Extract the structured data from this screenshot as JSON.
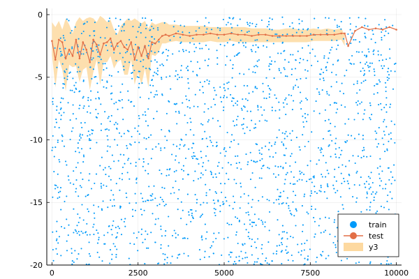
{
  "chart_data": {
    "type": "scatter",
    "title": "",
    "xlabel": "",
    "ylabel": "",
    "xlim": [
      -150,
      10150
    ],
    "ylim": [
      -20,
      0.5
    ],
    "xticks": [
      0,
      2500,
      5000,
      7500,
      10000
    ],
    "xtick_labels": [
      "0",
      "2500",
      "5000",
      "7500",
      "10000"
    ],
    "yticks": [
      0,
      -5,
      -10,
      -15,
      -20
    ],
    "ytick_labels": [
      "0",
      "-5",
      "-10",
      "-15",
      "-20"
    ],
    "grid": true,
    "legend_position": "bottom-right",
    "colors": {
      "train": "#009AFA",
      "test": "#E26F46",
      "band": "#FDD9A0"
    },
    "series": [
      {
        "name": "train",
        "kind": "scatter",
        "note_points": "approximately 2000 points spread uniformly across x in [0,10000] and y in [-20,-0.2]",
        "x_range": [
          0,
          10000
        ],
        "y_range": [
          -20,
          -0.2
        ],
        "count": 2000
      },
      {
        "name": "test",
        "kind": "line",
        "x": [
          0,
          100,
          200,
          300,
          400,
          500,
          600,
          700,
          800,
          900,
          1000,
          1100,
          1200,
          1300,
          1400,
          1500,
          1600,
          1700,
          1800,
          1900,
          2000,
          2100,
          2200,
          2300,
          2400,
          2500,
          2600,
          2700,
          2800,
          2900,
          3000,
          3100,
          3200,
          3300,
          3400,
          3600,
          3800,
          4000,
          4200,
          4400,
          4600,
          4800,
          5000,
          5200,
          5400,
          5600,
          5800,
          6000,
          6200,
          6400,
          6600,
          6800,
          7000,
          7200,
          7400,
          7600,
          7800,
          8000,
          8200,
          8400,
          8500,
          8600,
          8800,
          9000,
          9200,
          9400,
          9600,
          9800,
          10000
        ],
        "y": [
          -2.1,
          -3.6,
          -2.0,
          -2.2,
          -3.5,
          -2.8,
          -3.3,
          -2.0,
          -3.5,
          -2.2,
          -2.8,
          -3.8,
          -2.0,
          -2.4,
          -3.2,
          -2.3,
          -2.2,
          -1.9,
          -2.8,
          -2.3,
          -2.1,
          -2.6,
          -2.8,
          -2.2,
          -3.6,
          -2.6,
          -3.3,
          -2.5,
          -3.5,
          -2.2,
          -2.3,
          -2.0,
          -1.7,
          -1.6,
          -1.7,
          -1.5,
          -1.6,
          -1.7,
          -1.6,
          -1.6,
          -1.5,
          -1.6,
          -1.6,
          -1.5,
          -1.6,
          -1.6,
          -1.7,
          -1.6,
          -1.6,
          -1.7,
          -1.7,
          -1.7,
          -1.7,
          -1.7,
          -1.7,
          -1.6,
          -1.6,
          -1.6,
          -1.6,
          -1.5,
          -1.5,
          -2.5,
          -1.3,
          -1.0,
          -1.2,
          -1.1,
          -1.2,
          -1.0,
          -1.2
        ]
      },
      {
        "name": "y3",
        "kind": "band",
        "x": [
          0,
          100,
          200,
          300,
          400,
          500,
          600,
          700,
          800,
          900,
          1000,
          1100,
          1200,
          1300,
          1400,
          1500,
          1600,
          1700,
          1800,
          1900,
          2000,
          2100,
          2200,
          2300,
          2400,
          2500,
          2600,
          2700,
          2800,
          2900,
          3000,
          3100,
          3200,
          3300,
          3400,
          3600,
          3800,
          4000,
          4200,
          4400,
          4600,
          4800,
          5000,
          5200,
          5400,
          5600,
          5800,
          6000,
          6200,
          6400,
          6600,
          6800,
          7000,
          7200,
          7400,
          7600,
          7800,
          8000,
          8200,
          8400,
          8500
        ],
        "upper": [
          -0.6,
          -1.0,
          -0.5,
          -1.2,
          -0.3,
          -0.8,
          -1.5,
          -0.6,
          -0.2,
          -0.5,
          -0.3,
          -0.2,
          -0.3,
          -0.6,
          -0.1,
          -0.3,
          -0.6,
          -0.4,
          -1.2,
          -1.6,
          -0.9,
          -0.6,
          -0.3,
          -0.5,
          -0.3,
          -0.5,
          -0.7,
          -0.5,
          -1.1,
          -0.6,
          -0.8,
          -0.7,
          -0.6,
          -0.6,
          -0.8,
          -0.8,
          -0.9,
          -0.9,
          -0.9,
          -0.9,
          -1.0,
          -1.0,
          -1.0,
          -1.0,
          -1.0,
          -1.0,
          -1.1,
          -1.1,
          -1.1,
          -1.2,
          -1.2,
          -1.1,
          -1.1,
          -1.2,
          -1.2,
          -1.1,
          -1.2,
          -1.1,
          -1.2,
          -1.1,
          -1.6
        ],
        "lower": [
          -3.2,
          -5.8,
          -3.6,
          -4.4,
          -6.1,
          -4.0,
          -4.2,
          -4.1,
          -5.4,
          -4.4,
          -4.2,
          -6.0,
          -4.6,
          -3.6,
          -5.6,
          -3.8,
          -3.8,
          -3.3,
          -4.3,
          -3.8,
          -3.6,
          -4.8,
          -4.8,
          -3.6,
          -5.6,
          -4.6,
          -5.6,
          -4.3,
          -5.8,
          -3.2,
          -3.3,
          -3.0,
          -2.3,
          -2.3,
          -2.2,
          -2.1,
          -2.2,
          -2.2,
          -2.2,
          -2.2,
          -2.1,
          -2.2,
          -2.2,
          -2.1,
          -2.2,
          -2.2,
          -2.2,
          -2.2,
          -2.2,
          -2.2,
          -2.2,
          -2.2,
          -2.2,
          -2.2,
          -2.2,
          -2.1,
          -2.1,
          -2.1,
          -2.1,
          -2.0,
          -2.5
        ]
      }
    ]
  }
}
